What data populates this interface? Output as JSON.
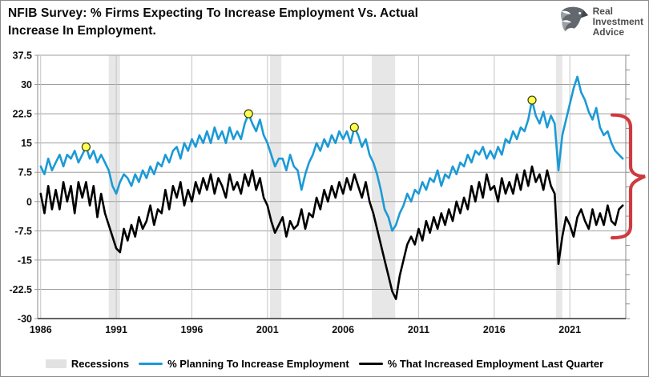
{
  "header": {
    "title_line1": "NFIB Survey:  % Firms Expecting To Increase Employment Vs. Actual",
    "title_line2": "Increase In Employment.",
    "logo": {
      "name": "Real Investment Advice",
      "lines": [
        "Real",
        "Investment",
        "Advice"
      ]
    }
  },
  "chart_data": {
    "type": "line",
    "title": "NFIB Survey: % Firms Expecting To Increase Employment Vs. Actual Increase In Employment.",
    "xlabel": "",
    "ylabel": "",
    "xlim": [
      1985.8,
      2024.7
    ],
    "ylim": [
      -30,
      37.5
    ],
    "x_ticks": [
      1986,
      1991,
      1996,
      2001,
      2006,
      2011,
      2016,
      2021
    ],
    "y_ticks": [
      37.5,
      30,
      22.5,
      15,
      7.5,
      0,
      -7.5,
      -15,
      -22.5,
      -30
    ],
    "y_tick_labels": [
      "37.5",
      "30",
      "22.5",
      "15",
      "7.5",
      "0",
      "-7.5",
      "-15",
      "-22.5",
      "-30"
    ],
    "grid": true,
    "legend_position": "bottom",
    "x_start": 1986,
    "x_step": 0.25,
    "series": [
      {
        "name": "% Planning To Increase Employment",
        "color": "#1b9ad6",
        "values": [
          9,
          7,
          11,
          8,
          10,
          12,
          9,
          12,
          11,
          13,
          10,
          12,
          14,
          11,
          13,
          10,
          12,
          10,
          8,
          4,
          2,
          5,
          7,
          6,
          4,
          7,
          5,
          8,
          6,
          9,
          7,
          10,
          9,
          12,
          10,
          13,
          14,
          11,
          15,
          13,
          16,
          14,
          17,
          15,
          18,
          15,
          19,
          16,
          18,
          15,
          19,
          16,
          18,
          16,
          20,
          22.5,
          20,
          18,
          21,
          17,
          15,
          12,
          9,
          11,
          11,
          8,
          12,
          9,
          8,
          3,
          7,
          10,
          12,
          15,
          13,
          16,
          14,
          17,
          15,
          18,
          16,
          18,
          15,
          19,
          17,
          14,
          16,
          12,
          10,
          7,
          3,
          -2,
          -4,
          -7.5,
          -6,
          -3,
          -1,
          2,
          0,
          3,
          2,
          5,
          3,
          6,
          5,
          8,
          4,
          7,
          6,
          9,
          7,
          10,
          9,
          12,
          10,
          13,
          12,
          14,
          11,
          13,
          11,
          14,
          12,
          16,
          15,
          18,
          16,
          19,
          18,
          21,
          26,
          22,
          20,
          23,
          19,
          22,
          20,
          8,
          17,
          21,
          25,
          29,
          32,
          28,
          26,
          23,
          21,
          24,
          19,
          17,
          18,
          15,
          13,
          12,
          11
        ]
      },
      {
        "name": "% That Increased Employment Last Quarter",
        "color": "#000000",
        "values": [
          2,
          -3,
          4,
          -2,
          3,
          -2,
          5,
          0,
          4,
          -3,
          5,
          1,
          5,
          -1,
          4,
          -4,
          2,
          -3,
          -6,
          -9,
          -12,
          -13,
          -7,
          -10,
          -6,
          -9,
          -4,
          -7,
          -5,
          -1,
          -6,
          -2,
          -3,
          3,
          -2,
          4,
          1,
          5,
          -1,
          3,
          0,
          5,
          2,
          6,
          3,
          7,
          2,
          6,
          4,
          1,
          7,
          3,
          5,
          2,
          7,
          4,
          8,
          3,
          6,
          1,
          -1,
          -5,
          -8,
          -6,
          -4,
          -9,
          -5,
          -7,
          -6,
          -2,
          -7,
          -3,
          -4,
          1,
          -2,
          3,
          0,
          4,
          1,
          5,
          2,
          6,
          3,
          7,
          4,
          1,
          5,
          0,
          -3,
          -7,
          -11,
          -15,
          -19,
          -23,
          -25,
          -19,
          -15,
          -11,
          -9,
          -11,
          -7,
          -10,
          -5,
          -8,
          -4,
          -7,
          -3,
          -6,
          -2,
          -5,
          0,
          -3,
          1,
          -2,
          4,
          0,
          5,
          1,
          7,
          3,
          4,
          0,
          6,
          2,
          5,
          2,
          7,
          3,
          8,
          4,
          9,
          5,
          7,
          3,
          8,
          4,
          2,
          -16,
          -9,
          -4,
          -6,
          -9,
          -4,
          -2,
          -5,
          -7,
          -2,
          -6,
          -3,
          -6,
          -1,
          -5,
          -6,
          -2,
          -1
        ]
      }
    ],
    "recessions": [
      [
        1990.5,
        1991.25
      ],
      [
        2001.17,
        2001.92
      ],
      [
        2007.9,
        2009.45
      ],
      [
        2020.08,
        2020.5
      ]
    ],
    "recession_color": "#e7e7e7",
    "markers": {
      "color": "#ffff54",
      "points": [
        [
          1989.0,
          14
        ],
        [
          1999.75,
          22.5
        ],
        [
          2006.75,
          19
        ],
        [
          2018.5,
          26
        ]
      ]
    },
    "annotation_brace": {
      "color": "#cf3a3f",
      "y_from": 22.2,
      "y_to": -9.3
    },
    "legend": [
      {
        "type": "box",
        "color": "#e2e2e2",
        "label": "Recessions"
      },
      {
        "type": "line",
        "color": "#1b9ad6",
        "label": "% Planning To Increase Employment"
      },
      {
        "type": "line",
        "color": "#000000",
        "label": "% That Increased Employment Last Quarter"
      }
    ]
  }
}
